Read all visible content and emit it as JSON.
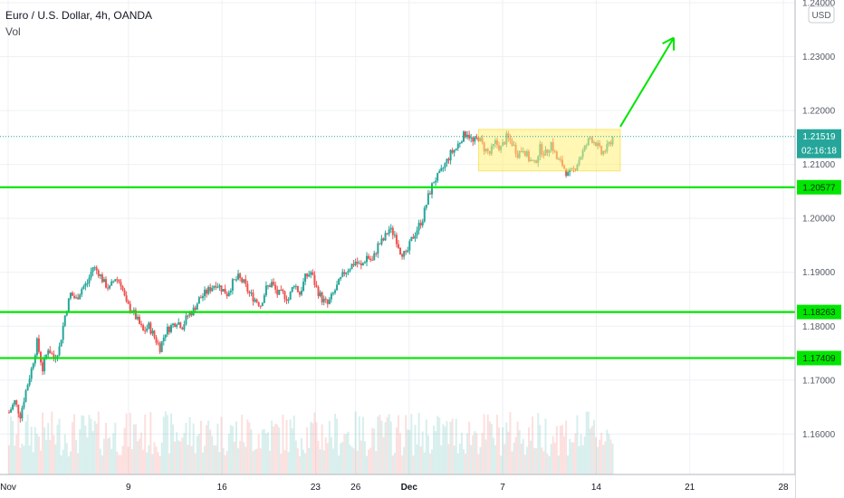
{
  "legend": {
    "title": "Euro / U.S. Dollar, 4h, OANDA",
    "volume_label": "Vol"
  },
  "currency_label": "USD",
  "colors": {
    "bull": "#26a69a",
    "bear": "#ef5350",
    "level_line": "#00e600",
    "price_line": "#26a69a",
    "consolidation_box": "#fff176",
    "arrow": "#00e600"
  },
  "chart_data": {
    "type": "candlestick",
    "ylim": [
      1.1525,
      1.2405
    ],
    "y_ticks": [
      "1.16000",
      "1.17000",
      "1.18000",
      "1.19000",
      "1.20000",
      "1.21000",
      "1.22000",
      "1.23000",
      "1.24000"
    ],
    "x_ticks": [
      {
        "label": "Nov",
        "day": 0
      },
      {
        "label": "9",
        "day": 9
      },
      {
        "label": "16",
        "day": 16
      },
      {
        "label": "23",
        "day": 23
      },
      {
        "label": "26",
        "day": 26
      },
      {
        "label": "Dec",
        "day": 30
      },
      {
        "label": "7",
        "day": 37
      },
      {
        "label": "14",
        "day": 44
      },
      {
        "label": "21",
        "day": 51
      },
      {
        "label": "28",
        "day": 58
      }
    ],
    "price_path": [
      [
        1.164,
        1.166,
        1.1635,
        1.168,
        1.172,
        1.177,
        1.172,
        1.176
      ],
      [
        1.174,
        1.176,
        1.182,
        1.186,
        1.185,
        1.187,
        1.188
      ],
      [
        1.191,
        1.19,
        1.188,
        1.187,
        1.189,
        1.188
      ],
      [
        1.184,
        1.183,
        1.181,
        1.179,
        1.18,
        1.178,
        1.176
      ],
      [
        1.179,
        1.18,
        1.181,
        1.18,
        1.182,
        1.183,
        1.185
      ],
      [
        1.186,
        1.187,
        1.188,
        1.187,
        1.186,
        1.188,
        1.189
      ],
      [
        1.188,
        1.186,
        1.185,
        1.184,
        1.187,
        1.188,
        1.186
      ],
      [
        1.186,
        1.185,
        1.188,
        1.186,
        1.189,
        1.19,
        1.187
      ],
      [
        1.185,
        1.184,
        1.186,
        1.188,
        1.19,
        1.191,
        1.192
      ],
      [
        1.191,
        1.193,
        1.192,
        1.195,
        1.196,
        1.198,
        1.197
      ],
      [
        1.194,
        1.193,
        1.196,
        1.198,
        1.2,
        1.204,
        1.207
      ],
      [
        1.208,
        1.21,
        1.212,
        1.213,
        1.215,
        1.216
      ],
      [
        1.214,
        1.215,
        1.213,
        1.212,
        1.214,
        1.213,
        1.215,
        1.214
      ],
      [
        1.212,
        1.213,
        1.211,
        1.21,
        1.213,
        1.212,
        1.214,
        1.211
      ],
      [
        1.21,
        1.208,
        1.209,
        1.211,
        1.213,
        1.215,
        1.214,
        1.212,
        1.213,
        1.215
      ]
    ],
    "levels": [
      {
        "value": 1.20577,
        "label": "1.20577"
      },
      {
        "value": 1.18263,
        "label": "1.18263"
      },
      {
        "value": 1.17409,
        "label": "1.17409"
      }
    ],
    "current_price": {
      "value": 1.21519,
      "label": "1.21519",
      "countdown": "02:16:18"
    },
    "consolidation_box": {
      "day_start": 35.2,
      "day_end": 45.8,
      "y_top": 1.2165,
      "y_bottom": 1.2088
    },
    "arrow": {
      "day_start": 45.8,
      "y_start": 1.217,
      "day_end": 49.8,
      "y_end": 1.2335
    }
  }
}
